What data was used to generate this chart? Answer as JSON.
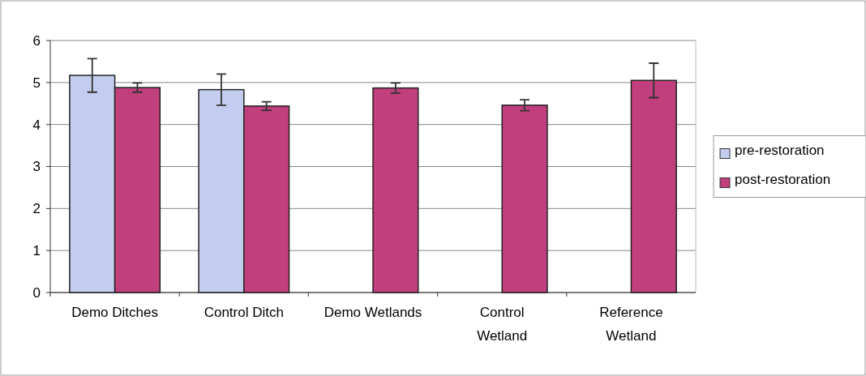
{
  "chart_data": {
    "type": "bar",
    "categories": [
      "Demo Ditches",
      "Control Ditch",
      "Demo Wetlands",
      "Control\nWetland",
      "Reference\nWetland"
    ],
    "series": [
      {
        "name": "pre-restoration",
        "color": "#c4cdf0",
        "values": [
          5.17,
          4.83,
          null,
          null,
          null
        ],
        "errors": [
          0.4,
          0.37,
          null,
          null,
          null
        ]
      },
      {
        "name": "post-restoration",
        "color": "#c03f7c",
        "values": [
          4.88,
          4.44,
          4.87,
          4.46,
          5.05
        ],
        "errors": [
          0.11,
          0.1,
          0.12,
          0.13,
          0.41
        ]
      }
    ],
    "ylim": [
      0,
      6
    ],
    "yticks": [
      0,
      1,
      2,
      3,
      4,
      5,
      6
    ],
    "grid": "y",
    "legend": "right"
  }
}
